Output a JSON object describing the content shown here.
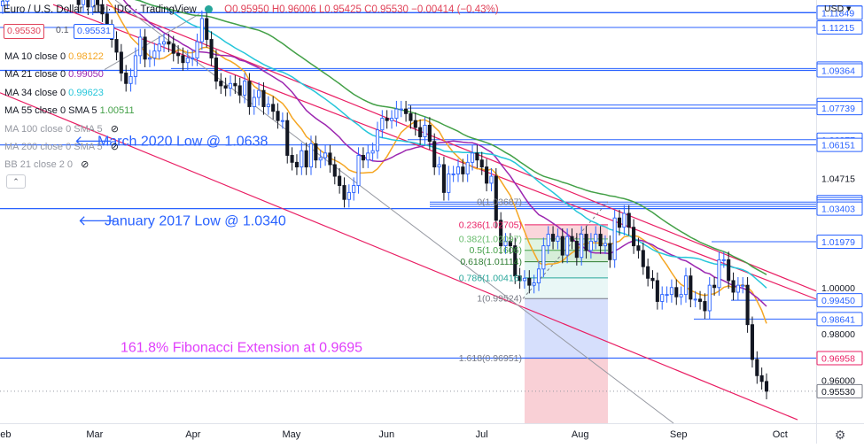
{
  "header": {
    "title": "Euro / U.S. Dollar · 1D · IDC · TradingView",
    "ohlc": "O0.95950 H0.96006 L0.95425 C0.95530 −0.00414 (−0.43%)"
  },
  "quote": {
    "sell": "0.95530",
    "spread": "0.1",
    "buy": "0.95531"
  },
  "indicators": [
    {
      "label": "MA 10 close 0",
      "value": "0.98122",
      "color": "#f5a623"
    },
    {
      "label": "MA 21 close 0",
      "value": "0.99050",
      "color": "#9c27b0"
    },
    {
      "label": "MA 34 close 0",
      "value": "0.99623",
      "color": "#26c6da"
    },
    {
      "label": "MA 55 close 0 SMA 5",
      "value": "1.00511",
      "color": "#43a047"
    },
    {
      "label": "MA 100 close 0 SMA 5",
      "value": "",
      "color": "#9598a1"
    },
    {
      "label": "MA 200 close 0 SMA 5",
      "value": "",
      "color": "#9598a1"
    },
    {
      "label": "BB 21 close 2 0",
      "value": "",
      "color": "#9598a1"
    }
  ],
  "colors": {
    "level_line": "#2962ff",
    "trend_line": "#e91e63",
    "annotation": "#2962ff",
    "fib_annotation": "#e040fb",
    "bull": "#2962ff",
    "bear": "#131722"
  },
  "chart_data": {
    "type": "candlestick",
    "axis": {
      "currency": "USD",
      "ylim": [
        0.9415,
        1.124
      ],
      "xlim": [
        "2022-01-31",
        "2022-10-06"
      ],
      "x_ticks": [
        {
          "label": "Feb",
          "date": "2022-01-31"
        },
        {
          "label": "Mar",
          "date": "2022-03-01"
        },
        {
          "label": "Apr",
          "date": "2022-04-01"
        },
        {
          "label": "May",
          "date": "2022-05-02"
        },
        {
          "label": "Jun",
          "date": "2022-06-01"
        },
        {
          "label": "Jul",
          "date": "2022-07-01"
        },
        {
          "label": "Aug",
          "date": "2022-08-01"
        },
        {
          "label": "Sep",
          "date": "2022-09-01"
        },
        {
          "label": "Oct",
          "date": "2022-10-03"
        }
      ],
      "y_ticks": [
        1.0,
        0.98,
        0.96
      ]
    },
    "price_levels": [
      {
        "value": 1.11861,
        "extend": "right"
      },
      {
        "value": 1.11849,
        "extend": "full"
      },
      {
        "value": 1.11215,
        "extend": "right"
      },
      {
        "value": 1.09447,
        "extend": "right"
      },
      {
        "value": 1.09364,
        "extend": "full"
      },
      {
        "value": 1.0787,
        "extend": "right"
      },
      {
        "value": 1.07739,
        "extend": "right"
      },
      {
        "value": 1.06377,
        "extend": "right"
      },
      {
        "value": 1.06151,
        "extend": "full"
      },
      {
        "value": 1.04715,
        "extend": "none"
      },
      {
        "value": 1.03687,
        "extend": "right"
      },
      {
        "value": 1.03594,
        "extend": "right"
      },
      {
        "value": 1.03494,
        "extend": "right"
      },
      {
        "value": 1.03403,
        "extend": "full"
      },
      {
        "value": 1.01979,
        "extend": "right"
      },
      {
        "value": 0.9945,
        "extend": "right"
      },
      {
        "value": 0.98641,
        "extend": "right"
      },
      {
        "value": 0.96958,
        "extend": "full"
      },
      {
        "value": 0.9553,
        "extend": "current"
      }
    ],
    "fib_retracement": [
      {
        "label": "0(1.03687)",
        "ratio": "0",
        "value": 1.03687
      },
      {
        "label": "0.236(1.02705)",
        "ratio": "0.236",
        "value": 1.02705,
        "color": "#e91e63"
      },
      {
        "label": "0.382(1.02097)",
        "ratio": "0.382",
        "value": 1.02097,
        "color": "#66bb6a"
      },
      {
        "label": "0.5(1.01606)",
        "ratio": "0.5",
        "value": 1.01606,
        "color": "#43a047"
      },
      {
        "label": "0.618(1.01114)",
        "ratio": "0.618",
        "value": 1.01114,
        "color": "#2e7d32"
      },
      {
        "label": "0.786(1.00416)",
        "ratio": "0.786",
        "value": 1.00416,
        "color": "#26a69a"
      },
      {
        "label": "1(0.99524)",
        "ratio": "1",
        "value": 0.99524
      },
      {
        "label": "1.618(0.96951)",
        "ratio": "1.618",
        "value": 0.96951
      }
    ],
    "annotations": [
      {
        "text": "March 2020 Low @ 1.0638",
        "value": 1.0638,
        "color": "#2962ff"
      },
      {
        "text": "January 2017 Low @ 1.0340",
        "value": 1.034,
        "color": "#2962ff"
      },
      {
        "text": "161.8% Fibonacci Extension at 0.9695",
        "value": 0.9695,
        "color": "#e040fb"
      }
    ],
    "series": [
      {
        "name": "EURUSD",
        "close": [
          1.1235,
          1.13,
          1.144,
          1.148,
          1.144,
          1.142,
          1.137,
          1.135,
          1.131,
          1.135,
          1.14,
          1.132,
          1.133,
          1.136,
          1.13,
          1.131,
          1.122,
          1.127,
          1.121,
          1.127,
          1.122,
          1.118,
          1.112,
          1.107,
          1.1015,
          1.0925,
          1.088,
          1.091,
          1.1,
          1.108,
          1.0985,
          1.099,
          1.102,
          1.105,
          1.106,
          1.105,
          1.101,
          1.1,
          1.097,
          1.099,
          1.099,
          1.106,
          1.116,
          1.107,
          1.099,
          1.089,
          1.087,
          1.086,
          1.088,
          1.087,
          1.083,
          1.089,
          1.078,
          1.082,
          1.085,
          1.078,
          1.079,
          1.076,
          1.072,
          1.072,
          1.057,
          1.054,
          1.052,
          1.059,
          1.052,
          1.062,
          1.055,
          1.056,
          1.058,
          1.053,
          1.048,
          1.044,
          1.038,
          1.041,
          1.044,
          1.057,
          1.055,
          1.058,
          1.059,
          1.068,
          1.073,
          1.072,
          1.073,
          1.077,
          1.077,
          1.075,
          1.072,
          1.069,
          1.065,
          1.07,
          1.063,
          1.052,
          1.053,
          1.041,
          1.049,
          1.049,
          1.052,
          1.049,
          1.054,
          1.058,
          1.055,
          1.052,
          1.045,
          1.048,
          1.029,
          1.018,
          1.02,
          1.018,
          1.005,
          1.003,
          1.004,
          1.001,
          1.002,
          1.008,
          1.018,
          1.023,
          1.02,
          1.022,
          1.014,
          1.022,
          1.02,
          1.013,
          1.023,
          1.016,
          1.02,
          1.023,
          1.018,
          1.019,
          1.012,
          1.03,
          1.026,
          1.032,
          1.026,
          1.018,
          1.016,
          1.009,
          1.004,
          1.003,
          0.994,
          0.997,
          0.997,
          1.0,
          0.996,
          0.997,
          1.005,
          0.995,
          0.995,
          0.994,
          0.99,
          1.001,
          1.0,
          1.012,
          1.012,
          1.003,
          0.998,
          1.001,
          1.001,
          0.984,
          0.969,
          0.962,
          0.9595,
          0.9553
        ]
      }
    ]
  }
}
